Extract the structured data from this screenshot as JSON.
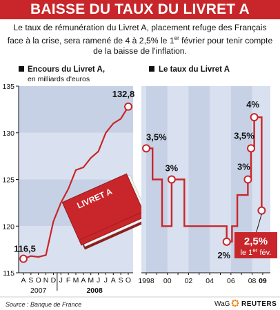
{
  "header": {
    "title": "BAISSE DU TAUX DU LIVRET A",
    "intro": "Le taux de rémunération du Livret A, placement refuge des Français face à la crise, sera ramené de 4 à 2,5% le 1er février pour tenir compte de la baisse de l'inflation."
  },
  "chart_data": [
    {
      "type": "line",
      "title": "Encours du Livret A,",
      "subtitle": "en milliards d'euros",
      "x": [
        "A",
        "S",
        "O",
        "N",
        "D",
        "J",
        "F",
        "M",
        "A",
        "M",
        "J",
        "J",
        "A",
        "S",
        "O"
      ],
      "year_labels": [
        "2007",
        "2008"
      ],
      "values": [
        116.5,
        116.8,
        116.7,
        116.9,
        120.5,
        122.5,
        124.0,
        126.0,
        126.3,
        127.3,
        128.0,
        130.0,
        131.0,
        131.5,
        132.8
      ],
      "ylim": [
        115,
        135
      ],
      "yticks": [
        115,
        120,
        125,
        130,
        135
      ],
      "grid": true,
      "data_labels": {
        "first": "116,5",
        "last": "132,8"
      },
      "book_label": "LIVRET A"
    },
    {
      "type": "line",
      "title": "Le taux du Livret A",
      "step": true,
      "x_ticks": [
        "1998",
        "00",
        "02",
        "04",
        "06",
        "08",
        "09"
      ],
      "x_range": [
        1998,
        2009.2
      ],
      "ylim": [
        1.5,
        4.5
      ],
      "series": [
        {
          "values": [
            [
              1998.0,
              3.5
            ],
            [
              1998.6,
              3.5
            ],
            [
              1998.6,
              3.0
            ],
            [
              1999.5,
              3.0
            ],
            [
              1999.5,
              2.25
            ],
            [
              2000.4,
              2.25
            ],
            [
              2000.4,
              3.0
            ],
            [
              2001.6,
              3.0
            ],
            [
              2001.6,
              2.25
            ],
            [
              2003.5,
              2.25
            ],
            [
              2003.5,
              2.25
            ],
            [
              2005.6,
              2.25
            ],
            [
              2005.6,
              2.0
            ],
            [
              2006.1,
              2.0
            ],
            [
              2006.1,
              2.25
            ],
            [
              2006.6,
              2.25
            ],
            [
              2006.6,
              2.75
            ],
            [
              2007.6,
              2.75
            ],
            [
              2007.6,
              3.0
            ],
            [
              2007.9,
              3.0
            ],
            [
              2007.9,
              3.5
            ],
            [
              2008.2,
              3.5
            ],
            [
              2008.2,
              4.0
            ],
            [
              2008.9,
              4.0
            ],
            [
              2008.9,
              2.5
            ]
          ]
        }
      ],
      "annotations": [
        {
          "text": "3,5%",
          "x": 1998.0,
          "y": 3.5
        },
        {
          "text": "3%",
          "x": 2000.4,
          "y": 3.0
        },
        {
          "text": "2%",
          "x": 2005.6,
          "y": 2.0
        },
        {
          "text": "3%",
          "x": 2007.6,
          "y": 3.0
        },
        {
          "text": "3,5%",
          "x": 2007.9,
          "y": 3.5
        },
        {
          "text": "4%",
          "x": 2008.2,
          "y": 4.0
        },
        {
          "text": "2,5%",
          "x": 2008.9,
          "y": 2.5
        }
      ],
      "callout": {
        "value": "2,5%",
        "line2": "le 1er fév."
      }
    }
  ],
  "footer": {
    "source": "Source : Banque de France",
    "credit": "WaG",
    "agency": "REUTERS"
  },
  "colors": {
    "accent": "#c8262a",
    "panel_dark": "#c7d1e6",
    "panel_light": "#d9e0ef",
    "line": "#c8262a"
  }
}
